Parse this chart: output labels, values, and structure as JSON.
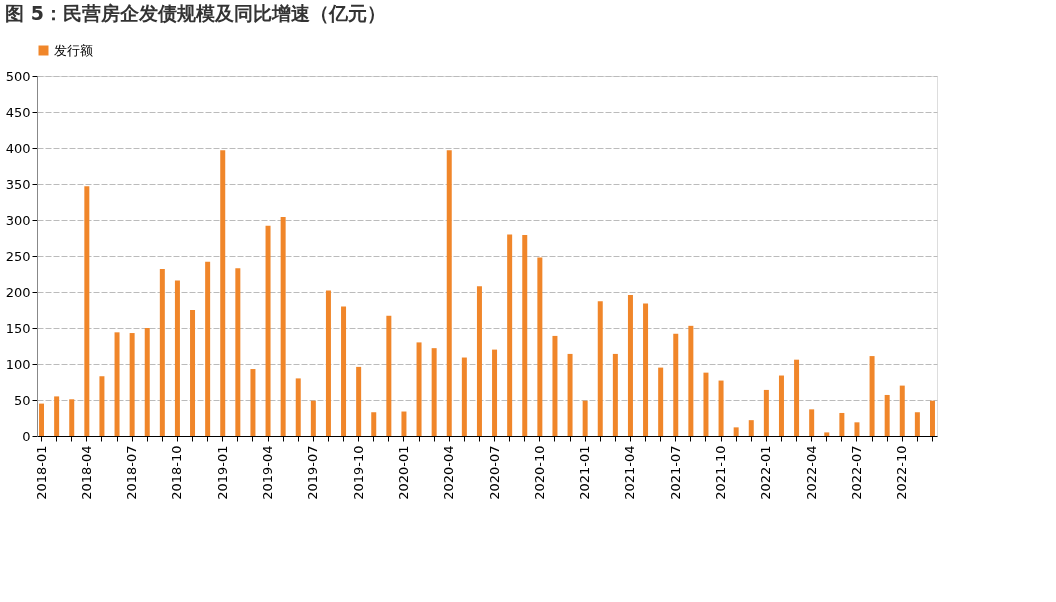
{
  "chart_data": {
    "type": "bar",
    "title": "图 5：民营房企发债规模及同比增速（亿元）",
    "categories": [
      "2018-01",
      null,
      null,
      "2018-04",
      null,
      null,
      "2018-07",
      null,
      null,
      "2018-10",
      null,
      null,
      "2019-01",
      null,
      null,
      "2019-04",
      null,
      null,
      "2019-07",
      null,
      null,
      "2019-10",
      null,
      null,
      "2020-01",
      null,
      null,
      "2020-04",
      null,
      null,
      "2020-07",
      null,
      null,
      "2020-10",
      null,
      null,
      "2021-01",
      null,
      null,
      "2021-04",
      null,
      null,
      "2021-07",
      null,
      null,
      "2021-10",
      null,
      null,
      "2022-01",
      null,
      null,
      "2022-04",
      null,
      null,
      "2022-07",
      null,
      null,
      "2022-10",
      null,
      null
    ],
    "series": [
      {
        "name": "发行额",
        "color": "#f0862a",
        "values": [
          45,
          55,
          51,
          347,
          83,
          144,
          143,
          150,
          232,
          216,
          175,
          242,
          397,
          233,
          93,
          292,
          304,
          80,
          49,
          202,
          180,
          96,
          33,
          167,
          34,
          130,
          122,
          397,
          109,
          208,
          120,
          280,
          279,
          248,
          139,
          114,
          49,
          187,
          114,
          196,
          184,
          95,
          142,
          153,
          88,
          77,
          12,
          22,
          64,
          84,
          106,
          37,
          5,
          32,
          19,
          111,
          57,
          70,
          33,
          49
        ]
      }
    ],
    "ylim": [
      0,
      500
    ],
    "yticks": [
      0,
      50,
      100,
      150,
      200,
      250,
      300,
      350,
      400,
      450,
      500
    ],
    "grid": "y",
    "legend": "top"
  }
}
